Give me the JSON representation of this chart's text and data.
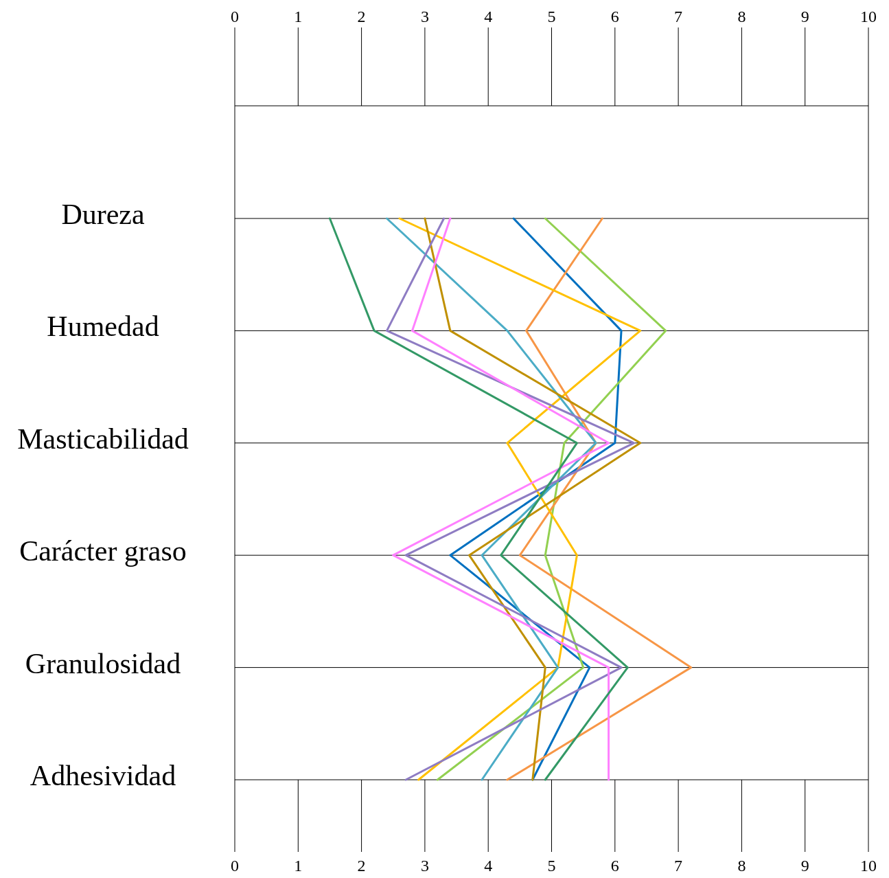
{
  "chart_data": {
    "type": "line",
    "orientation": "horizontal",
    "categories": [
      "Dureza",
      "Humedad",
      "Masticabilidad",
      "Carácter graso",
      "Granulosidad",
      "Adhesividad"
    ],
    "series": [
      {
        "color": "#0070c0",
        "values": [
          4.4,
          6.1,
          6.0,
          3.4,
          5.6,
          4.7
        ]
      },
      {
        "color": "#92d050",
        "values": [
          4.9,
          6.8,
          5.2,
          4.9,
          5.5,
          3.2
        ]
      },
      {
        "color": "#f79646",
        "values": [
          5.8,
          4.6,
          5.7,
          4.5,
          7.2,
          4.3
        ]
      },
      {
        "color": "#ffc000",
        "values": [
          2.6,
          6.4,
          4.3,
          5.4,
          5.1,
          2.9
        ]
      },
      {
        "color": "#4bacc6",
        "values": [
          2.4,
          4.3,
          5.7,
          3.9,
          5.1,
          3.9
        ]
      },
      {
        "color": "#c09000",
        "values": [
          3.0,
          3.4,
          6.4,
          3.7,
          4.9,
          4.7
        ]
      },
      {
        "color": "#8e7cc3",
        "values": [
          3.3,
          2.4,
          6.3,
          2.7,
          6.1,
          2.7
        ]
      },
      {
        "color": "#ff80ff",
        "values": [
          3.4,
          2.8,
          5.9,
          2.5,
          5.9,
          5.9
        ]
      },
      {
        "color": "#339966",
        "values": [
          1.5,
          2.2,
          5.4,
          4.2,
          6.2,
          4.9
        ]
      }
    ],
    "xlim": [
      0,
      10
    ],
    "xticks": [
      0,
      1,
      2,
      3,
      4,
      5,
      6,
      7,
      8,
      9,
      10
    ],
    "x2lim": [
      0,
      10
    ],
    "x2ticks": [
      0,
      1,
      2,
      3,
      4,
      5,
      6,
      7,
      8,
      9,
      10
    ],
    "grid": "y",
    "marker": "none",
    "line_style": "solid"
  }
}
